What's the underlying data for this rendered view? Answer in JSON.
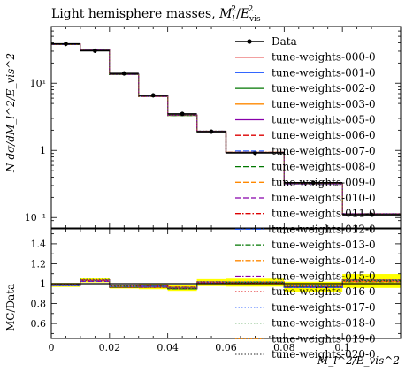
{
  "chart_data": {
    "type": "line",
    "title": "Light hemisphere masses, M_l^2/E_vis^2",
    "title_parts": {
      "main": "Light hemisphere masses, ",
      "sym": "M",
      "sub": "l",
      "sup": "2",
      "slash": "/",
      "sym2": "E",
      "sub2": "vis",
      "sup2": "2"
    },
    "ylabel_main": "N dσ/dM_l^2/E_vis^2",
    "ylabel_ratio": "MC/Data",
    "xlabel": "M_l^2/E_vis^2",
    "log_y": true,
    "xlim": [
      0,
      0.12
    ],
    "ylim_main": [
      0.07,
      70
    ],
    "ylim_ratio": [
      0.45,
      1.55
    ],
    "x_ticks": [
      "0",
      "0.02",
      "0.04",
      "0.06",
      "0.08",
      "0.1"
    ],
    "x_tick_values": [
      0,
      0.02,
      0.04,
      0.06,
      0.08,
      0.1
    ],
    "y_ticks_main": [
      {
        "value": 10,
        "label": "10¹"
      },
      {
        "value": 1,
        "label": "1"
      },
      {
        "value": 0.1,
        "label": "10⁻¹"
      }
    ],
    "y_ticks_ratio": [
      "0.6",
      "0.8",
      "1",
      "1.2",
      "1.4"
    ],
    "y_tick_values_ratio": [
      0.6,
      0.8,
      1.0,
      1.2,
      1.4
    ],
    "bin_edges": [
      0,
      0.01,
      0.02,
      0.03,
      0.04,
      0.05,
      0.06,
      0.08,
      0.1,
      0.12
    ],
    "data": {
      "name": "Data",
      "x": [
        0.005,
        0.015,
        0.025,
        0.035,
        0.045,
        0.055,
        0.07,
        0.09,
        0.11
      ],
      "y": [
        38.5,
        30.5,
        14.0,
        6.6,
        3.5,
        1.9,
        0.92,
        0.33,
        0.11
      ]
    },
    "mc_values": [
      38.0,
      31.5,
      13.6,
      6.4,
      3.35,
      1.92,
      0.93,
      0.32,
      0.113
    ],
    "legend_position": "top-right",
    "series": [
      {
        "name": "tune-weights-000-0",
        "color": "#dd0000",
        "style": "solid"
      },
      {
        "name": "tune-weights-001-0",
        "color": "#3366ff",
        "style": "solid"
      },
      {
        "name": "tune-weights-002-0",
        "color": "#007700",
        "style": "solid"
      },
      {
        "name": "tune-weights-003-0",
        "color": "#ff8800",
        "style": "solid"
      },
      {
        "name": "tune-weights-005-0",
        "color": "#8800aa",
        "style": "solid"
      },
      {
        "name": "tune-weights-006-0",
        "color": "#dd0000",
        "style": "dashed"
      },
      {
        "name": "tune-weights-007-0",
        "color": "#3366ff",
        "style": "dashed"
      },
      {
        "name": "tune-weights-008-0",
        "color": "#007700",
        "style": "dashed"
      },
      {
        "name": "tune-weights-009-0",
        "color": "#ff8800",
        "style": "dashed"
      },
      {
        "name": "tune-weights-010-0",
        "color": "#8800aa",
        "style": "dashed"
      },
      {
        "name": "tune-weights-011-0",
        "color": "#dd0000",
        "style": "dashdot"
      },
      {
        "name": "tune-weights-012-0",
        "color": "#3366ff",
        "style": "dashdot"
      },
      {
        "name": "tune-weights-013-0",
        "color": "#007700",
        "style": "dashdot"
      },
      {
        "name": "tune-weights-014-0",
        "color": "#ff8800",
        "style": "dashdot"
      },
      {
        "name": "tune-weights-015-0",
        "color": "#8800aa",
        "style": "dashdot"
      },
      {
        "name": "tune-weights-016-0",
        "color": "#dd0000",
        "style": "dotted"
      },
      {
        "name": "tune-weights-017-0",
        "color": "#3366ff",
        "style": "dotted"
      },
      {
        "name": "tune-weights-018-0",
        "color": "#007700",
        "style": "dotted"
      },
      {
        "name": "tune-weights-019-0",
        "color": "#ff8800",
        "style": "dotted"
      },
      {
        "name": "tune-weights-020-0",
        "color": "#555555",
        "style": "dotted"
      }
    ],
    "ratio_band_color": "#ffff00"
  }
}
